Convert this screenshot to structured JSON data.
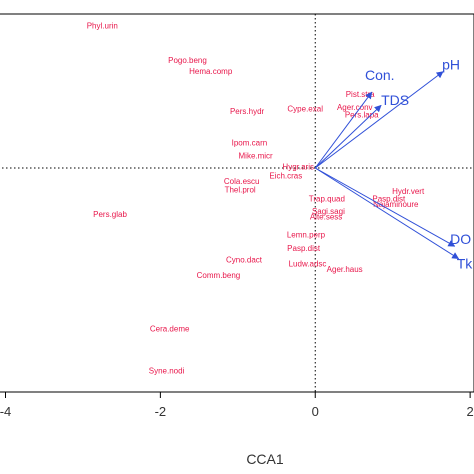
{
  "chart_data": {
    "type": "scatter",
    "subtype": "cca-biplot",
    "xlabel": "CCA1",
    "ylabel": "",
    "xlim": [
      -4.2,
      2.05
    ],
    "ylim": [
      -2.72,
      1.87
    ],
    "x_ticks": [
      {
        "value": -4,
        "label": "-4"
      },
      {
        "value": -2,
        "label": "-2"
      },
      {
        "value": 0,
        "label": "0"
      },
      {
        "value": 2,
        "label": "2"
      }
    ],
    "reference_lines": {
      "x": 0,
      "y": 0,
      "style": "dotted"
    },
    "colors": {
      "species": "#e8174b",
      "environment": "#3050d8",
      "frame": "#000000"
    },
    "species": [
      {
        "name": "Phyl.urin",
        "x": -2.75,
        "y": 1.72
      },
      {
        "name": "Pogo.beng",
        "x": -1.65,
        "y": 1.3
      },
      {
        "name": "Hema.comp",
        "x": -1.35,
        "y": 1.17
      },
      {
        "name": "Pers.hydr",
        "x": -0.88,
        "y": 0.68
      },
      {
        "name": "Cype.exal",
        "x": -0.13,
        "y": 0.71
      },
      {
        "name": "Pist.stra",
        "x": 0.58,
        "y": 0.89
      },
      {
        "name": "Ager.conv",
        "x": 0.51,
        "y": 0.73
      },
      {
        "name": "Pers.lapa",
        "x": 0.6,
        "y": 0.64
      },
      {
        "name": "Ipom.carn",
        "x": -0.85,
        "y": 0.3
      },
      {
        "name": "Mike.micr",
        "x": -0.77,
        "y": 0.14
      },
      {
        "name": "Hygr.aris",
        "x": -0.22,
        "y": 0.01
      },
      {
        "name": "Eich.cras",
        "x": -0.38,
        "y": -0.1
      },
      {
        "name": "Cola.escu",
        "x": -0.95,
        "y": -0.17
      },
      {
        "name": "Thel.prol",
        "x": -0.97,
        "y": -0.27
      },
      {
        "name": "Trap.quad",
        "x": 0.15,
        "y": -0.38
      },
      {
        "name": "Hydr.vert",
        "x": 1.2,
        "y": -0.29
      },
      {
        "name": "Pasp.dist",
        "x": 0.95,
        "y": -0.38
      },
      {
        "name": "Najaminoure",
        "x": 1.04,
        "y": -0.45
      },
      {
        "name": "Sagi.sagi",
        "x": 0.17,
        "y": -0.53
      },
      {
        "name": "Alte.sess",
        "x": 0.14,
        "y": -0.6
      },
      {
        "name": "Pers.glab",
        "x": -2.65,
        "y": -0.57
      },
      {
        "name": "Lemn.perp",
        "x": -0.12,
        "y": -0.82
      },
      {
        "name": "Pasp.dist",
        "x": -0.15,
        "y": -0.98
      },
      {
        "name": "Cyno.dact",
        "x": -0.92,
        "y": -1.12
      },
      {
        "name": "Ludw.adsc",
        "x": -0.1,
        "y": -1.17
      },
      {
        "name": "Ager.haus",
        "x": 0.38,
        "y": -1.24
      },
      {
        "name": "Comm.beng",
        "x": -1.25,
        "y": -1.31
      },
      {
        "name": "Cera.deme",
        "x": -1.88,
        "y": -1.96
      },
      {
        "name": "Syne.nodi",
        "x": -1.92,
        "y": -2.47
      }
    ],
    "environment": [
      {
        "name": "pH",
        "x": 1.65,
        "y": 1.17
      },
      {
        "name": "Con.",
        "x": 0.73,
        "y": 0.92
      },
      {
        "name": "TDS",
        "x": 0.85,
        "y": 0.76
      },
      {
        "name": "DO",
        "x": 1.8,
        "y": -0.95
      },
      {
        "name": "Tk",
        "x": 1.85,
        "y": -1.1
      }
    ]
  }
}
